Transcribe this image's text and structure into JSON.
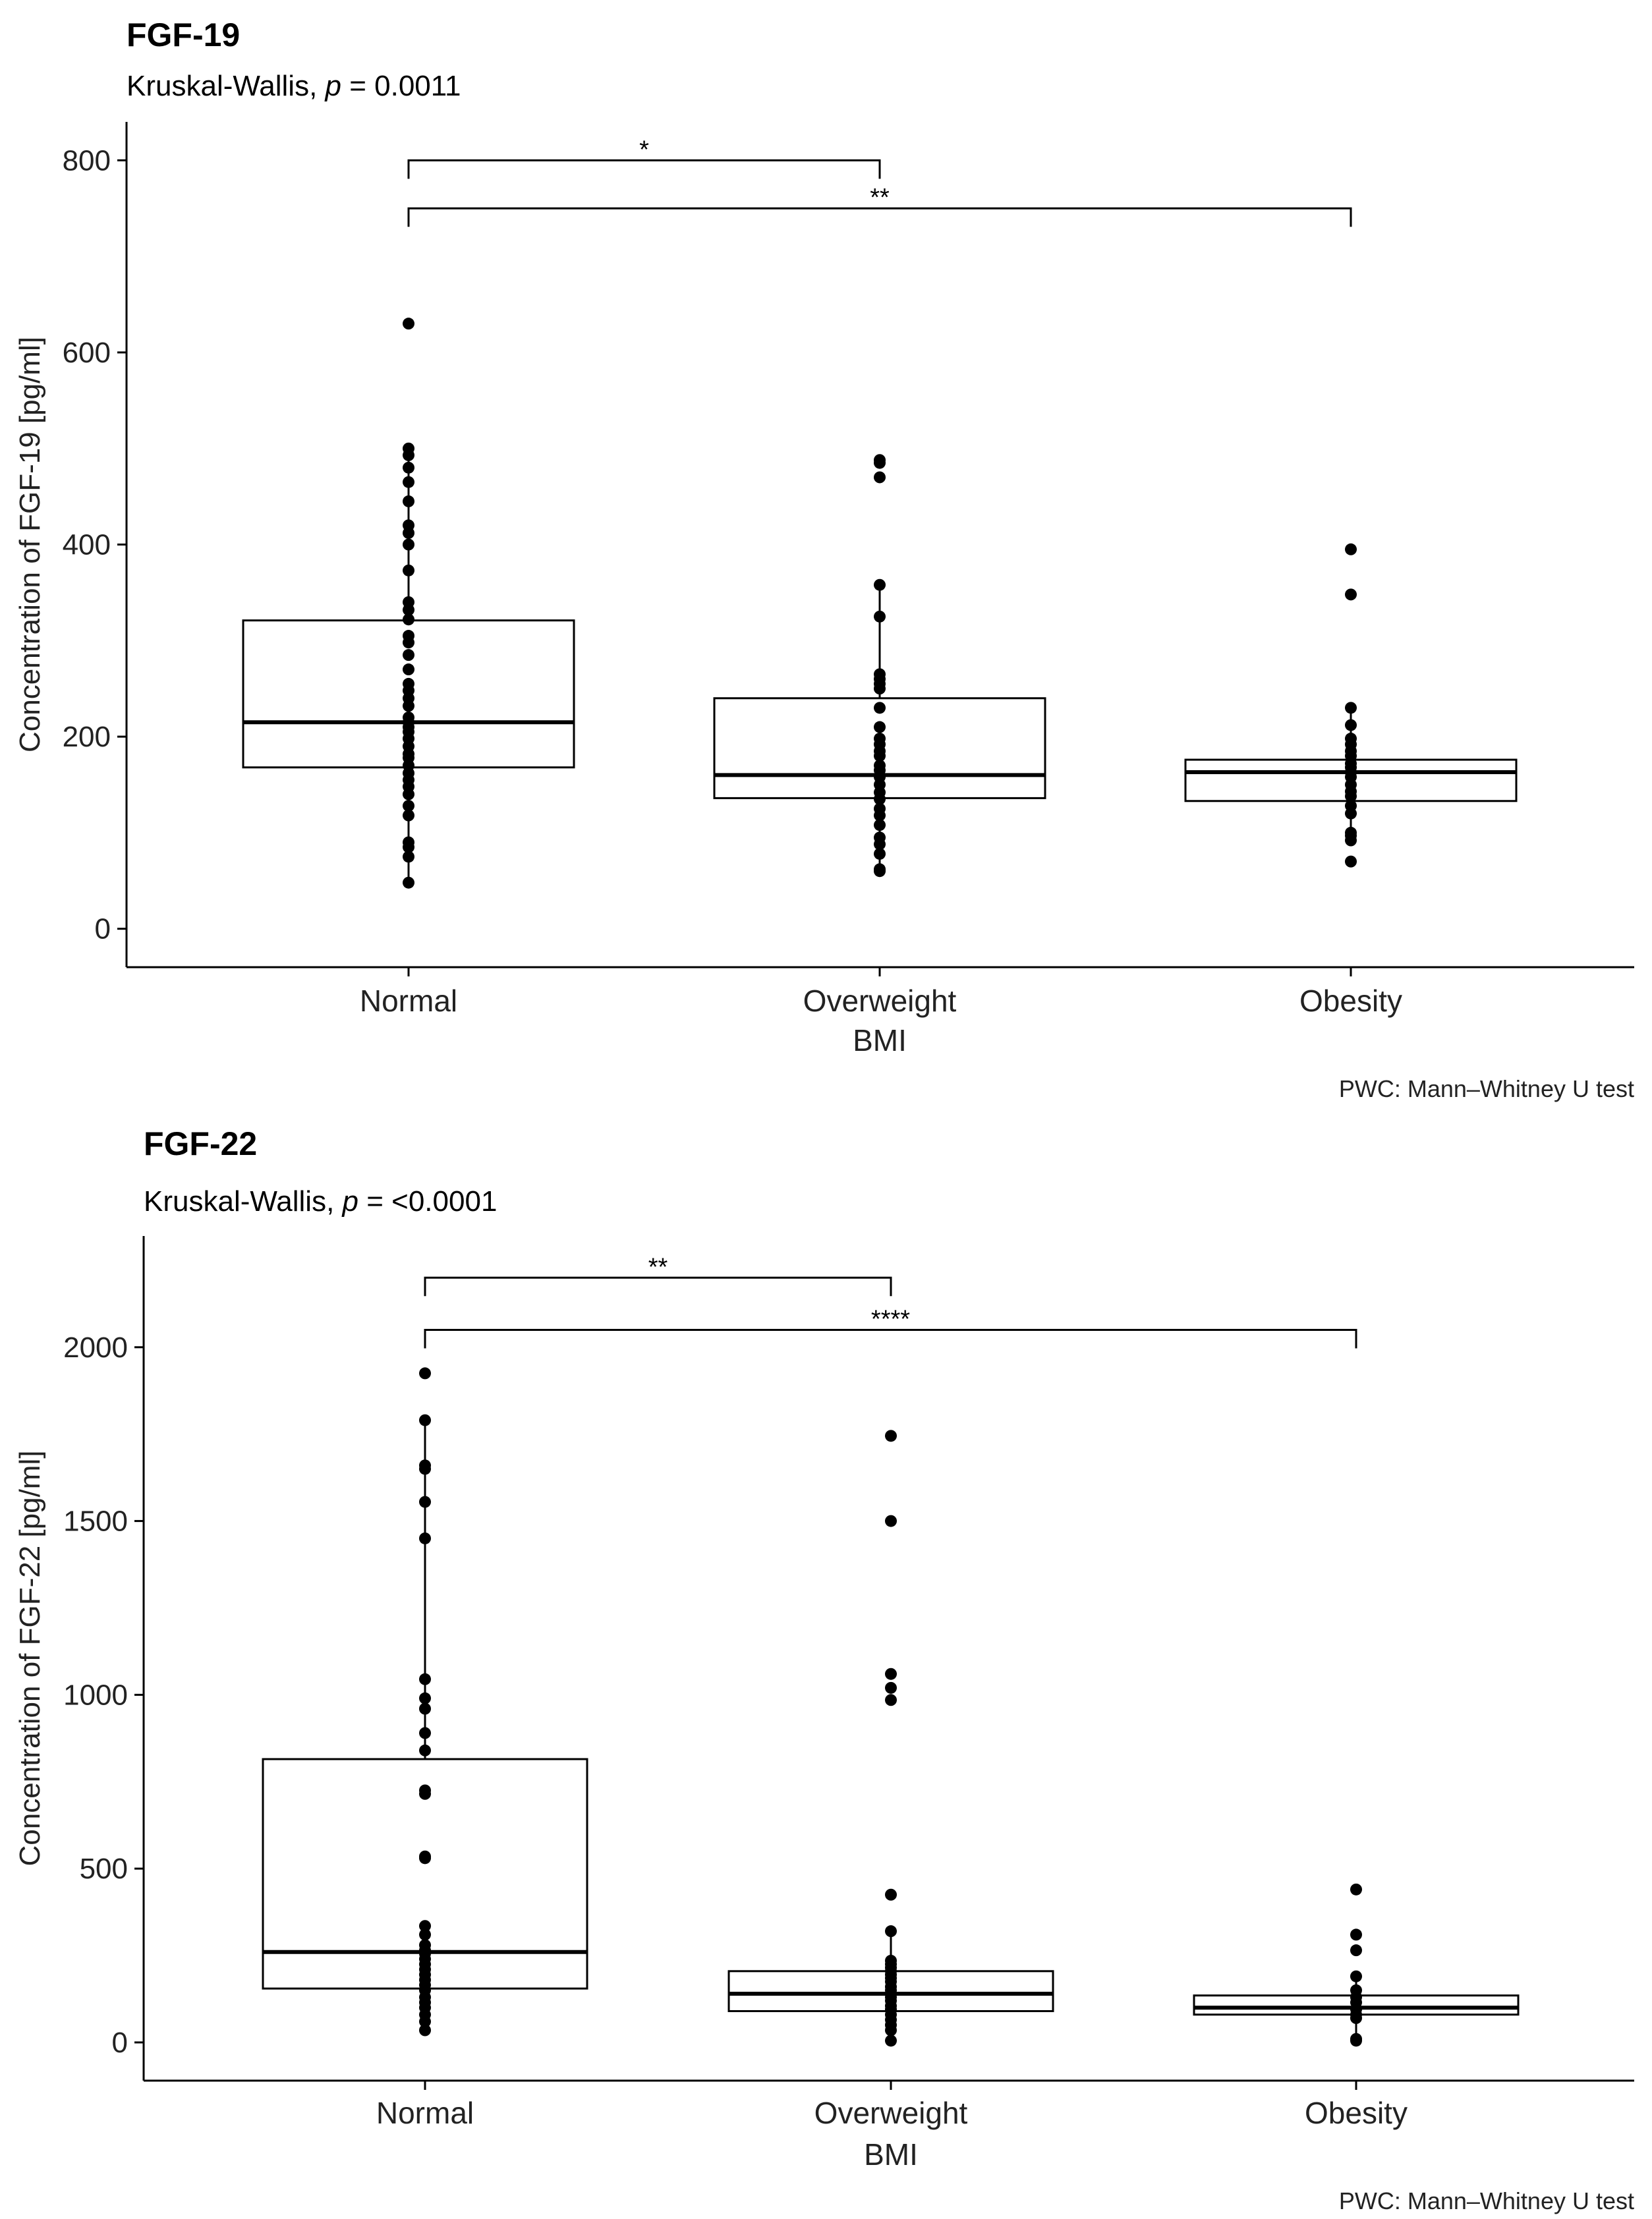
{
  "chart_data": [
    {
      "type": "boxplot",
      "title": "FGF-19",
      "subtitle_prefix": "Kruskal-Wallis, ",
      "subtitle_p": "p",
      "subtitle_suffix": " = 0.0011",
      "xlabel": "BMI",
      "ylabel": "Concentration of FGF-19 [pg/ml]",
      "caption": "PWC: Mann–Whitney U test",
      "categories": [
        "Normal",
        "Overweight",
        "Obesity"
      ],
      "ylim": [
        -40,
        840
      ],
      "yticks": [
        0,
        200,
        400,
        600,
        800
      ],
      "boxes": [
        {
          "category": "Normal",
          "q1": 168,
          "median": 215,
          "q3": 321,
          "whisker_low": 48,
          "whisker_high": 500
        },
        {
          "category": "Overweight",
          "q1": 136,
          "median": 160,
          "q3": 240,
          "whisker_low": 60,
          "whisker_high": 358
        },
        {
          "category": "Obesity",
          "q1": 133,
          "median": 163,
          "q3": 176,
          "whisker_low": 97,
          "whisker_high": 230
        }
      ],
      "points": [
        [
          630,
          500,
          493,
          480,
          465,
          445,
          420,
          412,
          400,
          373,
          340,
          332,
          322,
          305,
          298,
          285,
          270,
          255,
          248,
          240,
          232,
          220,
          215,
          210,
          205,
          198,
          190,
          182,
          178,
          170,
          162,
          155,
          148,
          140,
          128,
          118,
          90,
          85,
          75,
          48
        ],
        [
          488,
          485,
          470,
          358,
          325,
          265,
          260,
          255,
          250,
          230,
          210,
          198,
          192,
          185,
          180,
          170,
          165,
          158,
          150,
          142,
          135,
          125,
          118,
          108,
          95,
          88,
          78,
          62,
          60
        ],
        [
          395,
          348,
          230,
          212,
          198,
          192,
          185,
          180,
          172,
          168,
          163,
          158,
          150,
          143,
          138,
          128,
          120,
          100,
          97,
          92,
          70
        ]
      ],
      "brackets": [
        {
          "from": "Normal",
          "to": "Overweight",
          "y": 800,
          "label": "*"
        },
        {
          "from": "Normal",
          "to": "Obesity",
          "y": 750,
          "label": "**"
        }
      ]
    },
    {
      "type": "boxplot",
      "title": "FGF-22",
      "subtitle_prefix": "Kruskal-Wallis, ",
      "subtitle_p": "p",
      "subtitle_suffix": " = <0.0001",
      "xlabel": "BMI",
      "ylabel": "Concentration of FGF-22 [pg/ml]",
      "caption": "PWC: Mann–Whitney U test",
      "categories": [
        "Normal",
        "Overweight",
        "Obesity"
      ],
      "ylim": [
        -110,
        2320
      ],
      "yticks": [
        0,
        500,
        1000,
        1500,
        2000
      ],
      "boxes": [
        {
          "category": "Normal",
          "q1": 155,
          "median": 260,
          "q3": 815,
          "whisker_low": 35,
          "whisker_high": 1790
        },
        {
          "category": "Overweight",
          "q1": 90,
          "median": 140,
          "q3": 205,
          "whisker_low": 5,
          "whisker_high": 320
        },
        {
          "category": "Obesity",
          "q1": 80,
          "median": 100,
          "q3": 135,
          "whisker_low": 5,
          "whisker_high": 190
        }
      ],
      "points": [
        [
          1925,
          1790,
          1660,
          1650,
          1555,
          1450,
          1045,
          990,
          960,
          890,
          840,
          725,
          715,
          535,
          530,
          335,
          310,
          280,
          265,
          255,
          240,
          225,
          210,
          195,
          180,
          165,
          150,
          130,
          115,
          100,
          80,
          60,
          35
        ],
        [
          1745,
          1500,
          1060,
          1020,
          985,
          425,
          320,
          235,
          225,
          215,
          205,
          195,
          185,
          175,
          160,
          150,
          140,
          130,
          120,
          105,
          95,
          80,
          65,
          50,
          35,
          5
        ],
        [
          440,
          310,
          265,
          190,
          150,
          130,
          115,
          95,
          80,
          70,
          10,
          5
        ]
      ],
      "brackets": [
        {
          "from": "Normal",
          "to": "Overweight",
          "y": 2200,
          "label": "**"
        },
        {
          "from": "Normal",
          "to": "Obesity",
          "y": 2050,
          "label": "****"
        }
      ]
    }
  ]
}
